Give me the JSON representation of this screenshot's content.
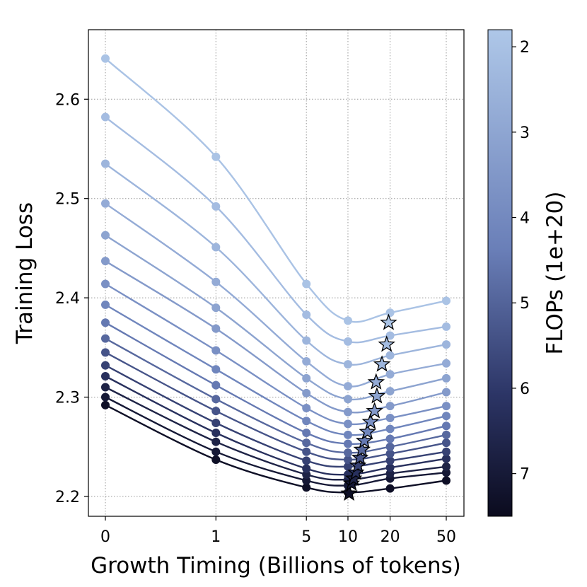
{
  "chart_data": {
    "type": "line",
    "xlabel": "Growth Timing (Billions of tokens)",
    "ylabel": "Training Loss",
    "x_ticks": [
      "0",
      "1",
      "5",
      "10",
      "20",
      "50"
    ],
    "x_tick_values": [
      0,
      1,
      5,
      10,
      20,
      50
    ],
    "y_ticks": [
      "2.2",
      "2.3",
      "2.4",
      "2.5",
      "2.6"
    ],
    "y_tick_values": [
      2.2,
      2.3,
      2.4,
      2.5,
      2.6
    ],
    "ylim": [
      2.18,
      2.67
    ],
    "grid": true,
    "grid_style": "dotted",
    "colorbar": {
      "label": "FLOPs (1e+20)",
      "ticks": [
        "2",
        "3",
        "4",
        "5",
        "6",
        "7"
      ],
      "tick_values": [
        2,
        3,
        4,
        5,
        6,
        7
      ],
      "range": [
        1.8,
        7.5
      ],
      "colormap_light": "#aec7e8",
      "colormap_mid": "#5a6fa8",
      "colormap_dark": "#0b0b1e"
    },
    "series": [
      {
        "flops": 1.96,
        "x": [
          0,
          1,
          5,
          10,
          20,
          50
        ],
        "y": [
          2.641,
          2.542,
          2.414,
          2.377,
          2.385,
          2.397
        ],
        "optimum": {
          "x": 19.5,
          "y": 2.375
        }
      },
      {
        "flops": 2.18,
        "x": [
          0,
          1,
          5,
          10,
          20,
          50
        ],
        "y": [
          2.582,
          2.492,
          2.383,
          2.356,
          2.362,
          2.371
        ],
        "optimum": {
          "x": 18.9,
          "y": 2.353
        }
      },
      {
        "flops": 2.45,
        "x": [
          0,
          1,
          5,
          10,
          20,
          50
        ],
        "y": [
          2.535,
          2.451,
          2.357,
          2.333,
          2.342,
          2.353
        ],
        "optimum": {
          "x": 17.5,
          "y": 2.333
        }
      },
      {
        "flops": 2.78,
        "x": [
          0,
          1,
          5,
          10,
          20,
          50
        ],
        "y": [
          2.495,
          2.416,
          2.336,
          2.311,
          2.323,
          2.334
        ],
        "optimum": {
          "x": 15.9,
          "y": 2.315
        }
      },
      {
        "flops": 3.06,
        "x": [
          0,
          1,
          5,
          10,
          20,
          50
        ],
        "y": [
          2.463,
          2.39,
          2.319,
          2.298,
          2.306,
          2.319
        ],
        "optimum": {
          "x": 16.1,
          "y": 2.301
        }
      },
      {
        "flops": 3.4,
        "x": [
          0,
          1,
          5,
          10,
          20,
          50
        ],
        "y": [
          2.437,
          2.369,
          2.304,
          2.285,
          2.291,
          2.305
        ],
        "optimum": {
          "x": 15.5,
          "y": 2.286
        }
      },
      {
        "flops": 3.75,
        "x": [
          0,
          1,
          5,
          10,
          20,
          50
        ],
        "y": [
          2.414,
          2.347,
          2.289,
          2.273,
          2.279,
          2.291
        ],
        "optimum": {
          "x": 14.5,
          "y": 2.275
        }
      },
      {
        "flops": 4.12,
        "x": [
          0,
          1,
          5,
          10,
          20,
          50
        ],
        "y": [
          2.393,
          2.328,
          2.276,
          2.262,
          2.268,
          2.281
        ],
        "optimum": {
          "x": 13.8,
          "y": 2.265
        }
      },
      {
        "flops": 4.5,
        "x": [
          0,
          1,
          5,
          10,
          20,
          50
        ],
        "y": [
          2.375,
          2.312,
          2.264,
          2.253,
          2.258,
          2.271
        ],
        "optimum": {
          "x": 13.1,
          "y": 2.256
        }
      },
      {
        "flops": 4.9,
        "x": [
          0,
          1,
          5,
          10,
          20,
          50
        ],
        "y": [
          2.359,
          2.298,
          2.254,
          2.244,
          2.25,
          2.262
        ],
        "optimum": {
          "x": 12.6,
          "y": 2.247
        }
      },
      {
        "flops": 5.35,
        "x": [
          0,
          1,
          5,
          10,
          20,
          50
        ],
        "y": [
          2.345,
          2.286,
          2.245,
          2.237,
          2.243,
          2.254
        ],
        "optimum": {
          "x": 12.2,
          "y": 2.239
        }
      },
      {
        "flops": 5.8,
        "x": [
          0,
          1,
          5,
          10,
          20,
          50
        ],
        "y": [
          2.332,
          2.274,
          2.236,
          2.23,
          2.236,
          2.245
        ],
        "optimum": {
          "x": 11.8,
          "y": 2.231
        }
      },
      {
        "flops": 6.25,
        "x": [
          0,
          1,
          5,
          10,
          20,
          50
        ],
        "y": [
          2.321,
          2.264,
          2.228,
          2.222,
          2.229,
          2.238
        ],
        "optimum": {
          "x": 11.4,
          "y": 2.224
        }
      },
      {
        "flops": 6.7,
        "x": [
          0,
          1,
          5,
          10,
          20,
          50
        ],
        "y": [
          2.31,
          2.255,
          2.222,
          2.217,
          2.223,
          2.23
        ],
        "optimum": {
          "x": 11.0,
          "y": 2.218
        }
      },
      {
        "flops": 7.05,
        "x": [
          0,
          1,
          5,
          10,
          20,
          50
        ],
        "y": [
          2.3,
          2.245,
          2.216,
          2.211,
          2.218,
          2.224
        ],
        "optimum": {
          "x": 10.6,
          "y": 2.213
        }
      },
      {
        "flops": 7.35,
        "x": [
          0,
          1,
          5,
          10,
          20,
          50
        ],
        "y": [
          2.292,
          2.237,
          2.209,
          2.204,
          2.208,
          2.216
        ],
        "optimum": {
          "x": 10.2,
          "y": 2.203
        }
      }
    ]
  }
}
